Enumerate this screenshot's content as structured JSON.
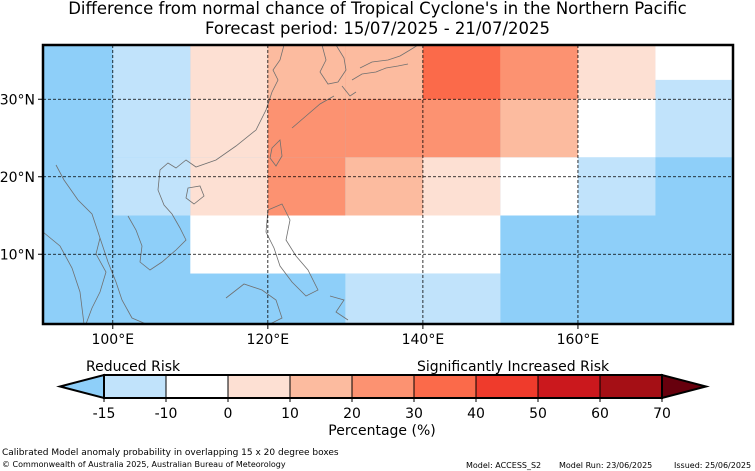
{
  "title_line1": "Difference from normal chance of Tropical Cyclone's in the Northern Pacific",
  "title_line2": "Forecast period: 15/07/2025 - 21/07/2025",
  "map": {
    "lon_ticks": [
      "100°E",
      "120°E",
      "140°E",
      "160°E"
    ],
    "lat_ticks": [
      "30°N",
      "20°N",
      "10°N"
    ],
    "lon_values": [
      100,
      120,
      140,
      160
    ],
    "lat_values": [
      30,
      20,
      10
    ],
    "lon_range": [
      91,
      180
    ],
    "lat_range": [
      1,
      37
    ],
    "risk_cells": [
      {
        "lon": [
          90,
          100
        ],
        "lat": [
          22.5,
          37.5
        ],
        "level": -10
      },
      {
        "lon": [
          100,
          110
        ],
        "lat": [
          22.5,
          37.5
        ],
        "level": -5
      },
      {
        "lon": [
          110,
          120
        ],
        "lat": [
          22.5,
          37.5
        ],
        "level": 5
      },
      {
        "lon": [
          120,
          130
        ],
        "lat": [
          22.5,
          37.5
        ],
        "level": 25
      },
      {
        "lon": [
          120,
          130
        ],
        "lat": [
          30,
          37.5
        ],
        "level": 15
      },
      {
        "lon": [
          130,
          140
        ],
        "lat": [
          22.5,
          37.5
        ],
        "level": 25
      },
      {
        "lon": [
          130,
          140
        ],
        "lat": [
          30,
          37.5
        ],
        "level": 15
      },
      {
        "lon": [
          140,
          150
        ],
        "lat": [
          22.5,
          37.5
        ],
        "level": 25
      },
      {
        "lon": [
          140,
          150
        ],
        "lat": [
          30,
          37.5
        ],
        "level": 35
      },
      {
        "lon": [
          150,
          160
        ],
        "lat": [
          22.5,
          37.5
        ],
        "level": 15
      },
      {
        "lon": [
          150,
          160
        ],
        "lat": [
          30,
          37.5
        ],
        "level": 25
      },
      {
        "lon": [
          160,
          170
        ],
        "lat": [
          22.5,
          37.5
        ],
        "level": 0
      },
      {
        "lon": [
          160,
          170
        ],
        "lat": [
          30,
          37.5
        ],
        "level": 5
      },
      {
        "lon": [
          170,
          180
        ],
        "lat": [
          22.5,
          37.5
        ],
        "level": -5
      },
      {
        "lon": [
          170,
          180
        ],
        "lat": [
          32.5,
          37.5
        ],
        "level": 0
      },
      {
        "lon": [
          90,
          100
        ],
        "lat": [
          15,
          22.5
        ],
        "level": -10
      },
      {
        "lon": [
          100,
          110
        ],
        "lat": [
          15,
          22.5
        ],
        "level": -5
      },
      {
        "lon": [
          110,
          120
        ],
        "lat": [
          15,
          22.5
        ],
        "level": 5
      },
      {
        "lon": [
          120,
          130
        ],
        "lat": [
          15,
          22.5
        ],
        "level": 25
      },
      {
        "lon": [
          130,
          140
        ],
        "lat": [
          15,
          22.5
        ],
        "level": 15
      },
      {
        "lon": [
          140,
          150
        ],
        "lat": [
          15,
          22.5
        ],
        "level": 5
      },
      {
        "lon": [
          150,
          160
        ],
        "lat": [
          15,
          22.5
        ],
        "level": 0
      },
      {
        "lon": [
          160,
          170
        ],
        "lat": [
          15,
          22.5
        ],
        "level": -5
      },
      {
        "lon": [
          170,
          180
        ],
        "lat": [
          15,
          22.5
        ],
        "level": -10
      },
      {
        "lon": [
          90,
          110
        ],
        "lat": [
          0,
          15
        ],
        "level": -10
      },
      {
        "lon": [
          110,
          150
        ],
        "lat": [
          7.5,
          15
        ],
        "level": 0
      },
      {
        "lon": [
          150,
          180
        ],
        "lat": [
          0,
          15
        ],
        "level": -10
      },
      {
        "lon": [
          110,
          130
        ],
        "lat": [
          0,
          7.5
        ],
        "level": -10
      },
      {
        "lon": [
          130,
          150
        ],
        "lat": [
          0,
          7.5
        ],
        "level": -5
      }
    ]
  },
  "colorbar": {
    "label_left": "Reduced Risk",
    "label_right": "Significantly Increased Risk",
    "ticks": [
      "-15",
      "-10",
      "0",
      "10",
      "20",
      "30",
      "40",
      "50",
      "60",
      "70"
    ],
    "colors": [
      "#8ecff9",
      "#c1e3fb",
      "#ffffff",
      "#fde0d3",
      "#fcbb9f",
      "#fc9271",
      "#fb6a4a",
      "#ef3b2c",
      "#cb181d",
      "#a50f15",
      "#67000d"
    ],
    "xlabel": "Percentage (%)"
  },
  "footer": {
    "caption": "Calibrated Model anomaly probability in overlapping 15 x 20 degree boxes",
    "copyright": "© Commonwealth of Australia 2025, Australian Bureau of Meteorology",
    "model": "Model: ACCESS_S2",
    "model_run": "Model Run: 23/06/2025",
    "issued": "Issued: 25/06/2025"
  }
}
